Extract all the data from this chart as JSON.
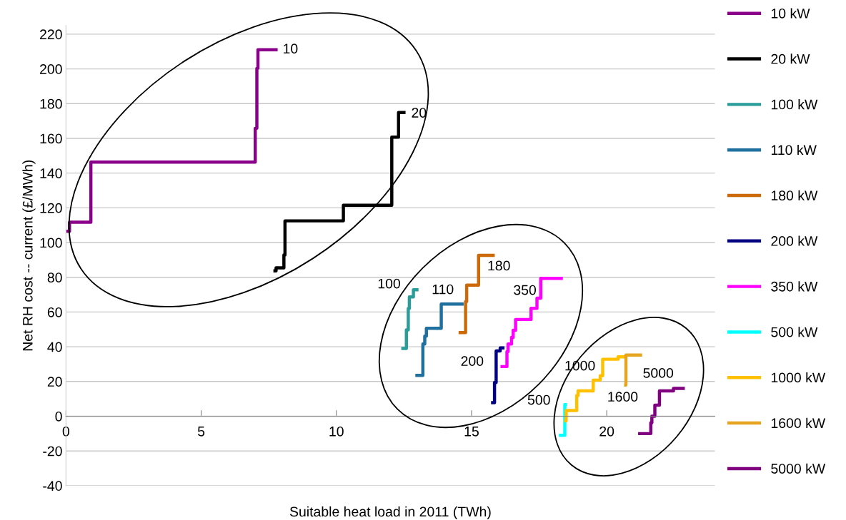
{
  "chart_data": {
    "type": "step",
    "xlabel": "Suitable heat load in 2011 (TWh)",
    "ylabel": "Net RH cost -- current (£/MWh)",
    "xlim": [
      0,
      24
    ],
    "xticks": [
      0,
      5,
      10,
      15,
      20
    ],
    "ylim": [
      -40,
      225
    ],
    "yticks": [
      -40,
      -20,
      0,
      20,
      40,
      60,
      80,
      100,
      120,
      140,
      160,
      180,
      200,
      220
    ],
    "grid": "y",
    "legend": "right",
    "series": [
      {
        "name": "10 kW",
        "color": "#8b008b",
        "x": [
          0,
          0.13,
          0.92,
          7.0,
          7.06,
          7.1,
          7.77
        ],
        "values": [
          106.5,
          111.7,
          146.3,
          165.8,
          200.3,
          211,
          211
        ]
      },
      {
        "name": "20 kW",
        "color": "#000000",
        "x": [
          7.73,
          7.77,
          8.06,
          8.1,
          10.26,
          12.05,
          12.3,
          12.5
        ],
        "values": [
          83.7,
          85.4,
          92.8,
          112.5,
          121.5,
          160.7,
          174.9,
          174.9
        ]
      },
      {
        "name": "100 kW",
        "color": "#2a9d9a",
        "x": [
          12.46,
          12.59,
          12.66,
          12.7,
          12.85,
          12.98
        ],
        "values": [
          39,
          49.7,
          62,
          68.7,
          72.8,
          72.8
        ]
      },
      {
        "name": "110 kW",
        "color": "#1f6f9f",
        "x": [
          12.98,
          13.2,
          13.27,
          13.33,
          13.88,
          14.65
        ],
        "values": [
          23.5,
          41.6,
          46.1,
          50.6,
          64.6,
          64.6
        ]
      },
      {
        "name": "180 kW",
        "color": "#cc6a0a",
        "x": [
          14.58,
          14.78,
          14.82,
          15.26,
          15.8
        ],
        "values": [
          48.2,
          66,
          75.5,
          92.6,
          92.6
        ]
      },
      {
        "name": "200 kW",
        "color": "#000080",
        "x": [
          15.78,
          15.85,
          15.91,
          16.06,
          16.16
        ],
        "values": [
          7.8,
          19.4,
          37.6,
          39.3,
          39.3
        ]
      },
      {
        "name": "350 kW",
        "color": "#ff00ff",
        "x": [
          16.13,
          16.31,
          16.35,
          16.48,
          16.54,
          16.63,
          17.2,
          17.42,
          17.56,
          18.32
        ],
        "values": [
          28.6,
          37.2,
          41.6,
          45.4,
          49.5,
          55.7,
          62.1,
          68,
          79.4,
          79.4
        ]
      },
      {
        "name": "500 kW",
        "color": "#00ffff",
        "x": [
          18.29,
          18.45,
          18.47
        ],
        "values": [
          -11,
          6.7,
          6.7
        ]
      },
      {
        "name": "1000 kW",
        "color": "#ffc000",
        "x": [
          18.48,
          18.5,
          18.89,
          18.94,
          19.5,
          19.76,
          19.85,
          20.42,
          20.7
        ],
        "values": [
          -2.7,
          3.3,
          11.9,
          14.6,
          20.8,
          23.3,
          32.8,
          34.2,
          34.2
        ]
      },
      {
        "name": "1600 kW",
        "color": "#e6a520",
        "x": [
          20.7,
          20.71,
          21.25
        ],
        "values": [
          18,
          35.2,
          35.2
        ]
      },
      {
        "name": "5000 kW",
        "color": "#800080",
        "x": [
          21.22,
          21.63,
          21.67,
          21.78,
          21.95,
          22.47,
          22.83
        ],
        "values": [
          -10,
          -3.8,
          0,
          6.4,
          14.6,
          16,
          16
        ]
      }
    ],
    "annotations": [
      "10",
      "20",
      "100",
      "110",
      "180",
      "200",
      "350",
      "500",
      "1000",
      "1600",
      "5000"
    ]
  }
}
